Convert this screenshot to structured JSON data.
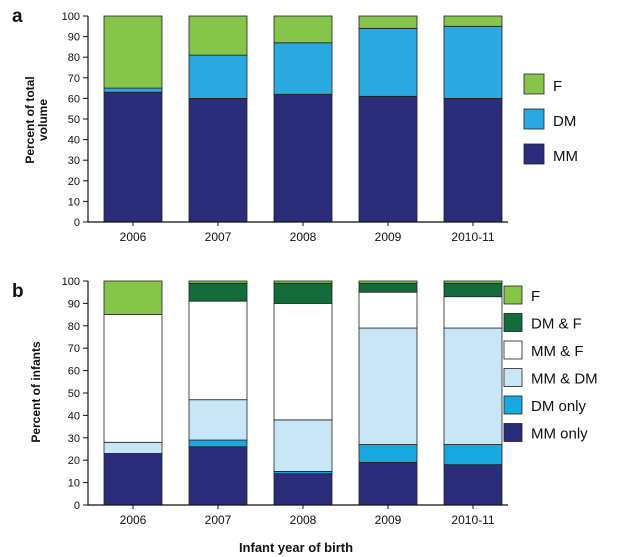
{
  "chart_data": [
    {
      "panel_label": "a",
      "type": "bar",
      "stacked": true,
      "categories": [
        "2006",
        "2007",
        "2008",
        "2009",
        "2010-11"
      ],
      "ylabel_lines": [
        "Percent of total",
        "volume"
      ],
      "xlabel": "",
      "ylim": [
        0,
        100
      ],
      "yticks": [
        "0",
        "10",
        "20",
        "30",
        "40",
        "50",
        "60",
        "70",
        "80",
        "90",
        "100"
      ],
      "series": [
        {
          "name": "MM",
          "color": "#2b2d7a",
          "values": [
            63,
            60,
            62,
            61,
            60
          ]
        },
        {
          "name": "DM",
          "color": "#2aa8e0",
          "values": [
            2,
            21,
            25,
            33,
            35
          ]
        },
        {
          "name": "F",
          "color": "#86c44a",
          "values": [
            35,
            19,
            13,
            6,
            5
          ]
        }
      ],
      "legend": [
        "F",
        "DM",
        "MM"
      ],
      "legend_position": "right"
    },
    {
      "panel_label": "b",
      "type": "bar",
      "stacked": true,
      "categories": [
        "2006",
        "2007",
        "2008",
        "2009",
        "2010-11"
      ],
      "ylabel_lines": [
        "Percent of infants"
      ],
      "xlabel": "Infant year of birth",
      "ylim": [
        0,
        100
      ],
      "yticks": [
        "0",
        "10",
        "20",
        "30",
        "40",
        "50",
        "60",
        "70",
        "80",
        "90",
        "100"
      ],
      "series": [
        {
          "name": "MM only",
          "color": "#2b2d7a",
          "values": [
            23,
            26,
            14,
            19,
            18
          ]
        },
        {
          "name": "DM only",
          "color": "#18a8e0",
          "values": [
            0,
            3,
            1,
            8,
            9
          ]
        },
        {
          "name": "MM & DM",
          "color": "#c8e6f6",
          "values": [
            5,
            18,
            23,
            52,
            52
          ]
        },
        {
          "name": "MM & F",
          "color": "#ffffff",
          "values": [
            57,
            44,
            52,
            16,
            14
          ]
        },
        {
          "name": "DM & F",
          "color": "#136a3a",
          "values": [
            0,
            8,
            9,
            4,
            6
          ]
        },
        {
          "name": "F",
          "color": "#86c44a",
          "values": [
            15,
            1,
            1,
            1,
            1
          ]
        }
      ],
      "legend": [
        "F",
        "DM & F",
        "MM & F",
        "MM & DM",
        "DM only",
        "MM only"
      ],
      "legend_position": "right"
    }
  ]
}
